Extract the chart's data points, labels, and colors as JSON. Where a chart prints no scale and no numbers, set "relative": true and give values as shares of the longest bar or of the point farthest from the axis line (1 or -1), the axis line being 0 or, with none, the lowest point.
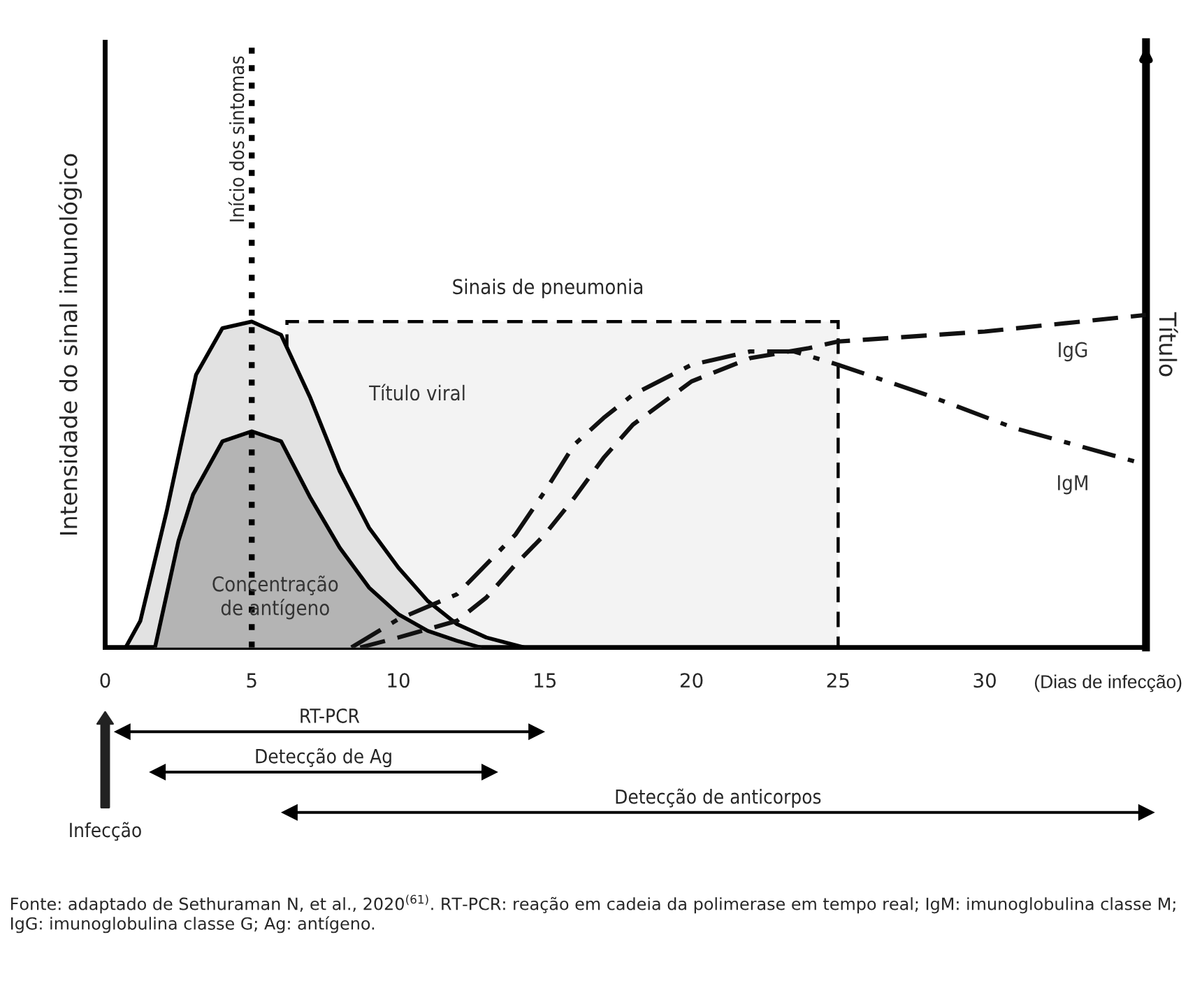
{
  "chart_data": [
    {
      "type": "line",
      "relative": true,
      "xlabel": "(Dias de infecção)",
      "ylabel": "Intensidade do sinal imunológico",
      "y2label": "Título",
      "xlim": [
        0,
        35.5
      ],
      "xticks": [
        0,
        5,
        10,
        15,
        20,
        25,
        30
      ],
      "series": [
        {
          "name": "Título viral",
          "type": "area",
          "color": "#e2e2e2",
          "x": [
            0.7,
            1.2,
            2.1,
            3.1,
            4,
            5,
            6,
            7,
            8,
            9,
            10,
            11,
            12,
            13,
            14.3
          ],
          "values": [
            0,
            0.08,
            0.41,
            0.82,
            0.96,
            0.98,
            0.94,
            0.75,
            0.53,
            0.36,
            0.24,
            0.14,
            0.07,
            0.03,
            0
          ]
        },
        {
          "name": "Concentração de antígeno",
          "type": "area",
          "color": "#b4b4b4",
          "x": [
            1.7,
            2.5,
            3,
            4,
            5,
            6,
            7,
            8,
            9,
            10,
            11,
            12,
            12.8
          ],
          "values": [
            0,
            0.32,
            0.46,
            0.62,
            0.65,
            0.62,
            0.45,
            0.3,
            0.18,
            0.1,
            0.05,
            0.02,
            0
          ]
        },
        {
          "name": "IgG",
          "color": "#111111",
          "line_style": "dashed",
          "x": [
            8.7,
            10,
            12,
            13,
            14,
            15,
            16,
            17,
            18,
            20,
            22,
            24,
            25,
            30,
            35.5
          ],
          "values": [
            0,
            0.03,
            0.08,
            0.15,
            0.25,
            0.34,
            0.45,
            0.57,
            0.67,
            0.8,
            0.87,
            0.9,
            0.92,
            0.95,
            1.0
          ]
        },
        {
          "name": "IgM",
          "color": "#111111",
          "line_style": "dashdot",
          "x": [
            8.4,
            10,
            12,
            14,
            15,
            16,
            17,
            18,
            20,
            22,
            23.5,
            25,
            28,
            31,
            35.5
          ],
          "values": [
            0,
            0.085,
            0.16,
            0.34,
            0.47,
            0.61,
            0.69,
            0.76,
            0.85,
            0.89,
            0.89,
            0.85,
            0.76,
            0.66,
            0.55
          ]
        }
      ],
      "ref_lines": [
        {
          "axis": "x",
          "value": 5,
          "label": "Início dos sintomas",
          "line_style": "dotted",
          "color": "#000000"
        }
      ],
      "bands": [
        {
          "axis": "x",
          "from": 6.2,
          "to": 25,
          "label": "Sinais de pneumonia",
          "color": "#f3f3f3"
        }
      ]
    },
    {
      "type": "bar",
      "orientation": "horizontal",
      "xlim": [
        0,
        35.5
      ],
      "tick_labels": false,
      "color": "#000000",
      "categories": [
        "RT-PCR",
        "Detecção de Ag",
        "Detecção de anticorpos"
      ],
      "base": [
        0.6,
        1.8,
        6.3
      ],
      "values": [
        14.1,
        11.3,
        29.2
      ],
      "annotations": [
        "Infecção",
        "Fonte: adaptado de Sethuraman N, et al., 2020$^{(61)}$. RT-PCR: reação em cadeia da polimerase em tempo real; IgM: imunoglobulina classe M; IgG: imunoglobulina classe G; Ag: antígeno."
      ]
    }
  ]
}
